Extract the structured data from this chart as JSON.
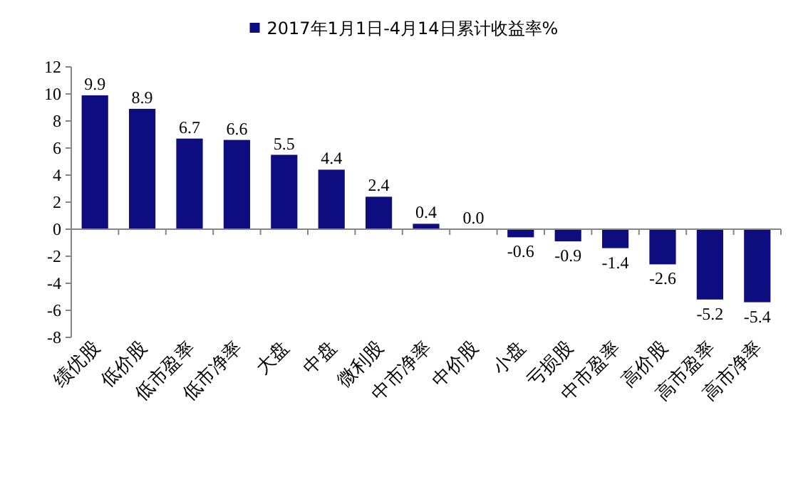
{
  "chart_data": {
    "type": "bar",
    "categories": [
      "绩优股",
      "低价股",
      "低市盈率",
      "低市净率",
      "大盘",
      "中盘",
      "微利股",
      "中市净率",
      "中价股",
      "小盘",
      "亏损股",
      "中市盈率",
      "高价股",
      "高市盈率",
      "高市净率"
    ],
    "series": [
      {
        "name": "2017年1月1日-4月14日累计收益率%",
        "color": "#0d0d80",
        "values": [
          9.9,
          8.9,
          6.7,
          6.6,
          5.5,
          4.4,
          2.4,
          0.4,
          0.0,
          -0.6,
          -0.9,
          -1.4,
          -2.6,
          -5.2,
          -5.4
        ],
        "value_labels": [
          "9.9",
          "8.9",
          "6.7",
          "6.6",
          "5.5",
          "4.4",
          "2.4",
          "0.4",
          "0.0",
          "-0.6",
          "-0.9",
          "-1.4",
          "-2.6",
          "-5.2",
          "-5.4"
        ]
      }
    ],
    "ylim": [
      -8,
      12
    ],
    "yticks": [
      -8,
      -6,
      -4,
      -2,
      0,
      2,
      4,
      6,
      8,
      10,
      12
    ],
    "legend": "top"
  }
}
